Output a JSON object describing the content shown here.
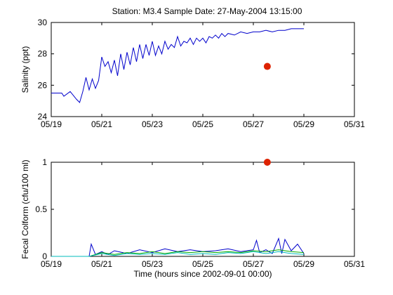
{
  "figure": {
    "title": "Station: M3.4  Sample Date: 27-May-2004 13:15:00"
  },
  "chart_data": [
    {
      "type": "line",
      "ylabel": "Salinity (ppt)",
      "xlabel": "",
      "xlim": [
        "05/19",
        "05/31"
      ],
      "ylim": [
        24,
        30
      ],
      "xticks": [
        "05/19",
        "05/21",
        "05/23",
        "05/25",
        "05/27",
        "05/29",
        "05/31"
      ],
      "yticks": [
        24,
        26,
        28,
        30
      ],
      "grid": false,
      "series": [
        {
          "color": "#0000cc",
          "style": "line",
          "x": [
            "05/19 00:00",
            "05/19 06:00",
            "05/19 10:00",
            "05/19 12:00",
            "05/19 18:00",
            "05/20 00:00",
            "05/20 03:00",
            "05/20 06:00",
            "05/20 09:00",
            "05/20 12:00",
            "05/20 15:00",
            "05/20 18:00",
            "05/20 21:00",
            "05/21 00:00",
            "05/21 03:00",
            "05/21 06:00",
            "05/21 09:00",
            "05/21 12:00",
            "05/21 15:00",
            "05/21 18:00",
            "05/21 21:00",
            "05/22 00:00",
            "05/22 03:00",
            "05/22 06:00",
            "05/22 09:00",
            "05/22 12:00",
            "05/22 15:00",
            "05/22 18:00",
            "05/22 21:00",
            "05/23 00:00",
            "05/23 03:00",
            "05/23 06:00",
            "05/23 09:00",
            "05/23 12:00",
            "05/23 15:00",
            "05/23 18:00",
            "05/23 21:00",
            "05/24 00:00",
            "05/24 03:00",
            "05/24 06:00",
            "05/24 09:00",
            "05/24 12:00",
            "05/24 15:00",
            "05/24 18:00",
            "05/24 21:00",
            "05/25 00:00",
            "05/25 03:00",
            "05/25 06:00",
            "05/25 09:00",
            "05/25 12:00",
            "05/25 15:00",
            "05/25 18:00",
            "05/25 21:00",
            "05/26 00:00",
            "05/26 06:00",
            "05/26 12:00",
            "05/26 18:00",
            "05/27 00:00",
            "05/27 06:00",
            "05/27 12:00",
            "05/27 18:00",
            "05/28 00:00",
            "05/28 06:00",
            "05/28 12:00",
            "05/28 18:00",
            "05/29 00:00"
          ],
          "y": [
            25.5,
            25.5,
            25.5,
            25.3,
            25.6,
            25.1,
            24.9,
            25.6,
            26.5,
            25.7,
            26.4,
            25.8,
            26.3,
            27.8,
            27.2,
            27.5,
            26.8,
            27.6,
            26.6,
            28.0,
            27.0,
            28.1,
            27.3,
            28.4,
            27.5,
            28.6,
            27.7,
            28.6,
            27.9,
            28.8,
            27.9,
            28.5,
            28.0,
            28.8,
            28.3,
            28.6,
            28.4,
            29.1,
            28.5,
            28.8,
            28.7,
            29.0,
            28.6,
            29.0,
            28.8,
            29.0,
            28.7,
            29.1,
            29.0,
            29.2,
            29.0,
            29.3,
            29.1,
            29.3,
            29.2,
            29.4,
            29.3,
            29.4,
            29.4,
            29.5,
            29.4,
            29.5,
            29.5,
            29.6,
            29.6,
            29.6
          ]
        },
        {
          "color": "#dd2200",
          "style": "marker",
          "x": [
            "05/27 13:15"
          ],
          "y": [
            27.2
          ]
        }
      ]
    },
    {
      "type": "line",
      "ylabel": "Fecal Colform (cfu/100 ml)",
      "xlabel": "Time (hours since 2002-09-01 00:00)",
      "xlim": [
        "05/19",
        "05/31"
      ],
      "ylim": [
        0,
        1
      ],
      "xticks": [
        "05/19",
        "05/21",
        "05/23",
        "05/25",
        "05/27",
        "05/29",
        "05/31"
      ],
      "yticks": [
        0,
        0.5,
        1
      ],
      "grid": false,
      "series": [
        {
          "color": "#0000cc",
          "style": "line",
          "x": [
            "05/19 00:00",
            "05/20 12:00",
            "05/20 14:00",
            "05/20 18:00",
            "05/21 00:00",
            "05/21 06:00",
            "05/21 12:00",
            "05/22 00:00",
            "05/22 12:00",
            "05/23 00:00",
            "05/23 12:00",
            "05/24 00:00",
            "05/24 12:00",
            "05/25 00:00",
            "05/25 12:00",
            "05/26 00:00",
            "05/26 12:00",
            "05/27 00:00",
            "05/27 03:00",
            "05/27 06:00",
            "05/27 12:00",
            "05/27 18:00",
            "05/28 00:00",
            "05/28 03:00",
            "05/28 06:00",
            "05/28 12:00",
            "05/28 18:00",
            "05/29 00:00"
          ],
          "y": [
            0.0,
            0.0,
            0.13,
            0.02,
            0.05,
            0.02,
            0.06,
            0.03,
            0.07,
            0.04,
            0.08,
            0.05,
            0.07,
            0.05,
            0.06,
            0.08,
            0.05,
            0.07,
            0.17,
            0.04,
            0.07,
            0.03,
            0.19,
            0.03,
            0.18,
            0.06,
            0.13,
            0.03
          ]
        },
        {
          "color": "#00aa00",
          "style": "line",
          "x": [
            "05/19 00:00",
            "05/20 12:00",
            "05/21 00:00",
            "05/21 12:00",
            "05/22 00:00",
            "05/22 12:00",
            "05/23 00:00",
            "05/23 12:00",
            "05/24 00:00",
            "05/24 12:00",
            "05/25 00:00",
            "05/25 12:00",
            "05/26 00:00",
            "05/26 12:00",
            "05/27 00:00",
            "05/27 12:00",
            "05/28 00:00",
            "05/28 12:00",
            "05/29 00:00"
          ],
          "y": [
            0.0,
            0.0,
            0.04,
            0.02,
            0.04,
            0.03,
            0.05,
            0.03,
            0.05,
            0.04,
            0.05,
            0.04,
            0.05,
            0.04,
            0.06,
            0.05,
            0.07,
            0.05,
            0.04
          ]
        },
        {
          "color": "#00bbbb",
          "style": "line",
          "x": [
            "05/19 00:00",
            "05/20 12:00",
            "05/21 00:00",
            "05/21 12:00",
            "05/22 00:00",
            "05/22 12:00",
            "05/23 00:00",
            "05/23 12:00",
            "05/24 00:00",
            "05/24 12:00",
            "05/25 00:00",
            "05/25 12:00",
            "05/26 00:00",
            "05/26 12:00",
            "05/27 00:00",
            "05/27 12:00",
            "05/28 00:00",
            "05/28 12:00",
            "05/29 00:00"
          ],
          "y": [
            0.0,
            0.0,
            0.03,
            0.01,
            0.03,
            0.02,
            0.03,
            0.02,
            0.04,
            0.02,
            0.03,
            0.02,
            0.04,
            0.03,
            0.05,
            0.03,
            0.05,
            0.03,
            0.02
          ]
        },
        {
          "color": "#dd2200",
          "style": "marker",
          "x": [
            "05/27 13:15"
          ],
          "y": [
            1.0
          ]
        }
      ]
    }
  ]
}
